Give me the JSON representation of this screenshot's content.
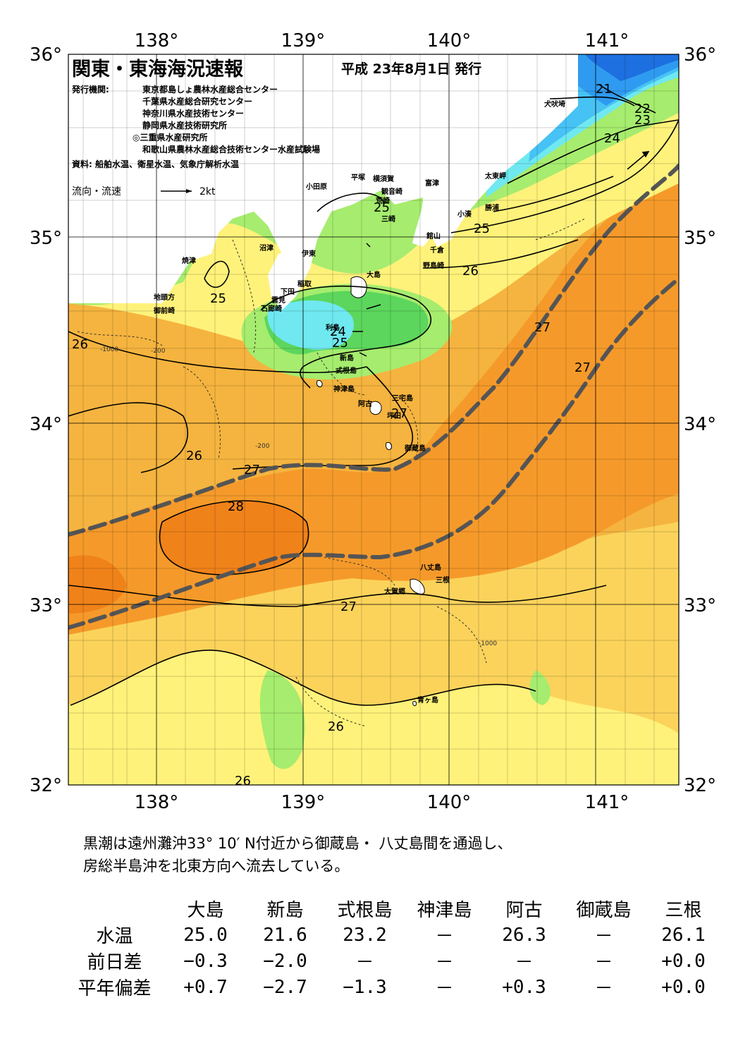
{
  "map": {
    "title": "関東・東海海況速報",
    "issue_date": "平成 23年8月1日 発行",
    "issuers_label": "発行機関:",
    "issuers": [
      "東京都島しょ農林水産総合センター",
      "千葉県水産総合研究センター",
      "神奈川県水産技術センター",
      "静岡県水産技術研究所",
      "◎三重県水産研究所",
      "和歌山県農林水産総合技術センター水産試験場"
    ],
    "sources": "資料: 船舶水温、衛星水温、気象庁解析水温",
    "legend_label": "流向・流速",
    "legend_speed": "2kt",
    "lon_labels": [
      "138°",
      "139°",
      "140°",
      "141°"
    ],
    "lat_labels": [
      "36°",
      "35°",
      "34°",
      "33°",
      "32°"
    ],
    "place_names": [
      "犬吠埼",
      "太東岬",
      "勝浦",
      "小湊",
      "館山",
      "千倉",
      "野島崎",
      "富津",
      "観音崎",
      "横須賀",
      "平塚",
      "荒崎",
      "三崎",
      "小田原",
      "沼津",
      "伊東",
      "稲取",
      "下田",
      "雲見",
      "石廊崎",
      "焼津",
      "地頭方",
      "御前崎",
      "大島",
      "利島",
      "新島",
      "式根島",
      "神津島",
      "三宅島",
      "阿古",
      "坪田",
      "御蔵島",
      "八丈島",
      "三根",
      "大賀郷",
      "青ヶ島"
    ],
    "isotherm_labels": [
      "21",
      "22",
      "23",
      "24",
      "25",
      "25",
      "25",
      "24",
      "25",
      "26",
      "26",
      "26",
      "27",
      "27",
      "27",
      "27",
      "28",
      "27",
      "26",
      "26"
    ],
    "depth_labels": [
      "-200",
      "-1000",
      "-200",
      "-1000"
    ],
    "temperature_colors": {
      "21": "#1e6fe0",
      "22": "#2f9bf0",
      "23": "#47c2f5",
      "24": "#6fe8f0",
      "25": "#5cd65c",
      "25.5": "#a6ec6e",
      "26": "#fff27a",
      "26.5": "#fbd35b",
      "27": "#f5b43f",
      "27.5": "#f59a2a",
      "28": "#f0821a"
    },
    "kuroshio_description": "Kuroshio axis shown as thick dashed grey lines"
  },
  "summary": [
    "黒潮は遠州灘沖33° 10′ N付近から御蔵島・ 八丈島間を通過し、",
    "房総半島沖を北東方向へ流去している。"
  ],
  "observations": {
    "stations": [
      "大島",
      "新島",
      "式根島",
      "神津島",
      "阿古",
      "御蔵島",
      "三根"
    ],
    "rows": [
      {
        "label": "水温",
        "values": [
          "25.0",
          "21.6",
          "23.2",
          "－",
          "26.3",
          "－",
          "26.1"
        ]
      },
      {
        "label": "前日差",
        "values": [
          "−0.3",
          "−2.0",
          "－",
          "－",
          "－",
          "－",
          "+0.0"
        ]
      },
      {
        "label": "平年偏差",
        "values": [
          "+0.7",
          "−2.7",
          "−1.3",
          "－",
          "+0.3",
          "－",
          "+0.0"
        ]
      }
    ]
  }
}
